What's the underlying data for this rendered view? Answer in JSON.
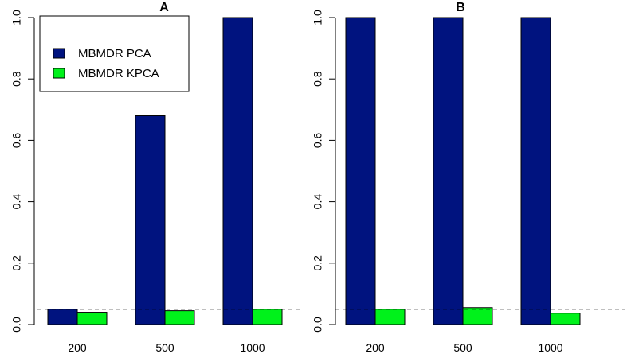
{
  "chart_data": [
    {
      "type": "bar",
      "title": "A",
      "categories": [
        "200",
        "500",
        "1000"
      ],
      "series": [
        {
          "name": "MBMDR PCA",
          "color": "#00137f",
          "values": [
            0.05,
            0.68,
            1.0
          ]
        },
        {
          "name": "MBMDR KPCA",
          "color": "#00f21b",
          "values": [
            0.04,
            0.045,
            0.05
          ]
        }
      ],
      "ylim": [
        0,
        1.0
      ],
      "yticks": [
        "0.0",
        "0.2",
        "0.4",
        "0.6",
        "0.8",
        "1.0"
      ],
      "reference_line": 0.05,
      "legend": "top-left"
    },
    {
      "type": "bar",
      "title": "B",
      "categories": [
        "200",
        "500",
        "1000"
      ],
      "series": [
        {
          "name": "MBMDR PCA",
          "color": "#00137f",
          "values": [
            1.0,
            1.0,
            1.0
          ]
        },
        {
          "name": "MBMDR KPCA",
          "color": "#00f21b",
          "values": [
            0.05,
            0.055,
            0.037
          ]
        }
      ],
      "ylim": [
        0,
        1.0
      ],
      "yticks": [
        "0.0",
        "0.2",
        "0.4",
        "0.6",
        "0.8",
        "1.0"
      ],
      "reference_line": 0.05
    }
  ]
}
